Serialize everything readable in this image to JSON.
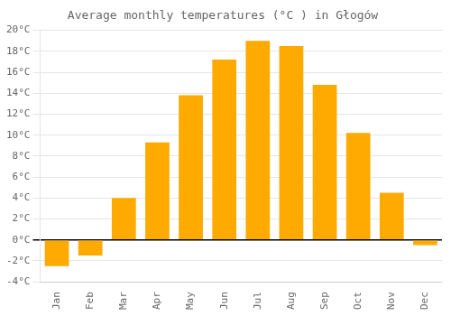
{
  "chart_data": {
    "type": "bar",
    "title": "Average monthly temperatures (°C ) in Głogów",
    "categories": [
      "Jan",
      "Feb",
      "Mar",
      "Apr",
      "May",
      "Jun",
      "Jul",
      "Aug",
      "Sep",
      "Oct",
      "Nov",
      "Dec"
    ],
    "values": [
      -2.5,
      -1.5,
      4.0,
      9.3,
      13.8,
      17.2,
      19.0,
      18.5,
      14.8,
      10.2,
      4.5,
      -0.5
    ],
    "color": "#FFAA00",
    "ylim": [
      -4,
      20
    ],
    "yticks": [
      {
        "value": -4,
        "label": "-4°C"
      },
      {
        "value": -2,
        "label": "-2°C"
      },
      {
        "value": 0,
        "label": "0°C"
      },
      {
        "value": 2,
        "label": "2°C"
      },
      {
        "value": 4,
        "label": "4°C"
      },
      {
        "value": 6,
        "label": "6°C"
      },
      {
        "value": 8,
        "label": "8°C"
      },
      {
        "value": 10,
        "label": "10°C"
      },
      {
        "value": 12,
        "label": "12°C"
      },
      {
        "value": 14,
        "label": "14°C"
      },
      {
        "value": 16,
        "label": "16°C"
      },
      {
        "value": 18,
        "label": "18°C"
      },
      {
        "value": 20,
        "label": "20°C"
      }
    ],
    "grid": true
  }
}
